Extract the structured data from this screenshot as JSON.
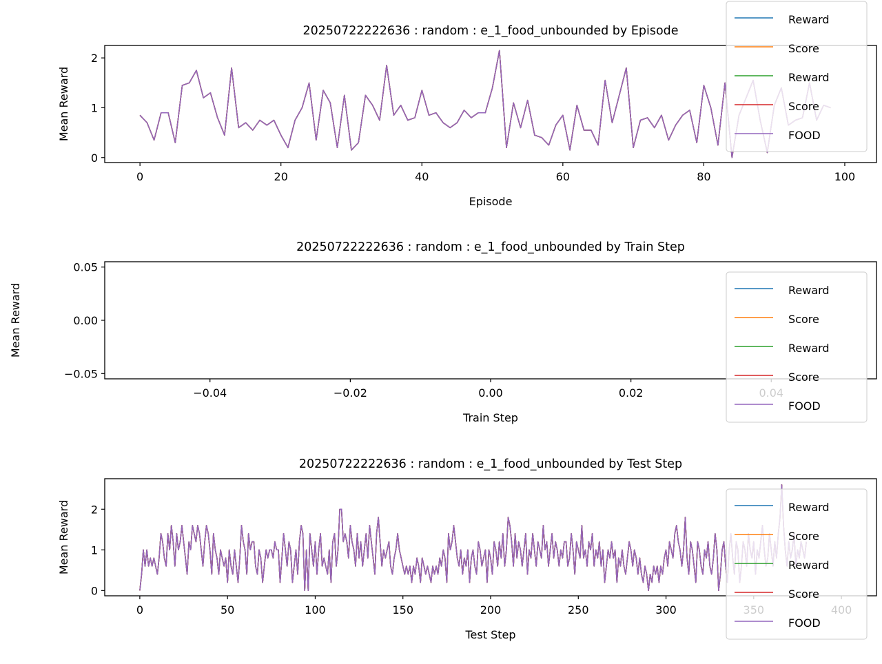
{
  "chart_data": [
    {
      "type": "line",
      "title": "20250722222636 : random : e_1_food_unbounded by Episode",
      "xlabel": "Episode",
      "ylabel": "Mean Reward",
      "xlim": [
        -5,
        104.5
      ],
      "ylim": [
        -0.1,
        2.25
      ],
      "xticks": [
        0,
        20,
        40,
        60,
        80,
        100
      ],
      "xtick_labels": [
        "0",
        "20",
        "40",
        "60",
        "80",
        "100"
      ],
      "yticks": [
        0,
        1,
        2
      ],
      "ytick_labels": [
        "0",
        "1",
        "2"
      ],
      "grid": false,
      "legend": "top-right",
      "x_start": 0,
      "values": [
        0.85,
        0.7,
        0.35,
        0.9,
        0.9,
        0.3,
        1.45,
        1.5,
        1.75,
        1.2,
        1.3,
        0.8,
        0.45,
        1.8,
        0.6,
        0.7,
        0.55,
        0.75,
        0.65,
        0.75,
        0.45,
        0.2,
        0.75,
        1.0,
        1.5,
        0.35,
        1.35,
        1.1,
        0.2,
        1.25,
        0.15,
        0.3,
        1.25,
        1.05,
        0.75,
        1.85,
        0.85,
        1.05,
        0.75,
        0.8,
        1.35,
        0.85,
        0.9,
        0.7,
        0.6,
        0.7,
        0.95,
        0.8,
        0.9,
        0.9,
        1.4,
        2.15,
        0.2,
        1.1,
        0.6,
        1.15,
        0.45,
        0.4,
        0.25,
        0.65,
        0.85,
        0.15,
        1.05,
        0.55,
        0.55,
        0.25,
        1.55,
        0.7,
        1.25,
        1.8,
        0.2,
        0.75,
        0.8,
        0.6,
        0.85,
        0.35,
        0.65,
        0.85,
        0.95,
        0.3,
        1.45,
        1.0,
        0.25,
        1.5,
        0.0,
        0.85,
        1.2,
        1.55,
        0.75,
        0.1,
        1.05,
        1.4,
        0.65,
        0.75,
        0.8,
        1.5,
        0.75,
        1.05,
        1.0
      ],
      "series": [
        {
          "name": "Reward",
          "color": "#1f77b4"
        },
        {
          "name": "Score",
          "color": "#ff7f0e"
        },
        {
          "name": "Reward",
          "color": "#2ca02c"
        },
        {
          "name": "Score",
          "color": "#d62728"
        },
        {
          "name": "FOOD",
          "color": "#9467bd"
        }
      ]
    },
    {
      "type": "line",
      "title": "20250722222636 : random : e_1_food_unbounded by Train Step",
      "xlabel": "Train Step",
      "ylabel": "Mean Reward",
      "xlim": [
        -0.055,
        0.055
      ],
      "ylim": [
        -0.055,
        0.055
      ],
      "xticks": [
        -0.04,
        -0.02,
        0,
        0.02,
        0.04
      ],
      "xtick_labels": [
        "−0.04",
        "−0.02",
        "0.00",
        "0.02",
        "0.04"
      ],
      "yticks": [
        0.05,
        0,
        -0.05
      ],
      "ytick_labels": [
        "0.05",
        "0.00",
        "−0.05"
      ],
      "grid": false,
      "legend": "right",
      "values": [],
      "series": [
        {
          "name": "Reward",
          "color": "#1f77b4"
        },
        {
          "name": "Score",
          "color": "#ff7f0e"
        },
        {
          "name": "Reward",
          "color": "#2ca02c"
        },
        {
          "name": "Score",
          "color": "#d62728"
        },
        {
          "name": "FOOD",
          "color": "#9467bd"
        }
      ]
    },
    {
      "type": "line",
      "title": "20250722222636 : random : e_1_food_unbounded by Test Step",
      "xlabel": "Test Step",
      "ylabel": "Mean Reward",
      "xlim": [
        -20,
        420
      ],
      "ylim": [
        -0.13,
        2.75
      ],
      "xticks": [
        0,
        50,
        100,
        150,
        200,
        250,
        300,
        350,
        400
      ],
      "xtick_labels": [
        "0",
        "50",
        "100",
        "150",
        "200",
        "250",
        "300",
        "350",
        "400"
      ],
      "yticks": [
        0,
        1,
        2
      ],
      "ytick_labels": [
        "0",
        "1",
        "2"
      ],
      "grid": false,
      "legend": "right",
      "x_start": 0,
      "values": [
        0.0,
        0.4,
        1.0,
        0.6,
        1.0,
        0.6,
        0.8,
        0.6,
        0.8,
        0.6,
        0.4,
        0.8,
        1.4,
        1.2,
        0.8,
        0.6,
        1.4,
        1.0,
        1.6,
        1.2,
        0.6,
        1.4,
        1.0,
        1.2,
        1.6,
        1.2,
        0.8,
        0.4,
        1.2,
        1.0,
        1.6,
        1.4,
        1.2,
        1.6,
        1.4,
        1.0,
        0.6,
        1.2,
        1.6,
        1.4,
        1.0,
        0.4,
        1.4,
        1.0,
        0.8,
        0.4,
        1.0,
        0.8,
        0.6,
        0.8,
        0.2,
        1.0,
        0.6,
        0.4,
        1.0,
        0.6,
        0.2,
        0.8,
        1.6,
        1.2,
        1.0,
        0.4,
        1.4,
        1.0,
        1.2,
        1.2,
        0.6,
        0.4,
        1.0,
        0.8,
        0.2,
        0.6,
        1.0,
        0.8,
        1.0,
        1.0,
        0.8,
        1.2,
        1.0,
        1.0,
        0.2,
        0.8,
        1.4,
        1.0,
        0.6,
        1.2,
        1.0,
        0.2,
        0.6,
        1.0,
        0.4,
        1.2,
        1.6,
        1.4,
        0.0,
        1.0,
        0.0,
        1.4,
        1.0,
        0.6,
        1.2,
        0.4,
        1.0,
        1.4,
        0.6,
        0.8,
        0.6,
        0.4,
        1.0,
        0.2,
        1.2,
        1.4,
        0.6,
        1.0,
        2.0,
        2.0,
        1.2,
        1.4,
        1.2,
        0.8,
        1.6,
        1.2,
        1.0,
        0.6,
        1.4,
        0.8,
        1.2,
        0.6,
        1.0,
        1.4,
        0.8,
        1.6,
        1.2,
        0.8,
        0.4,
        1.4,
        1.8,
        1.2,
        0.6,
        1.0,
        0.8,
        1.0,
        1.2,
        0.6,
        0.4,
        0.8,
        1.0,
        1.4,
        1.0,
        0.8,
        0.6,
        0.4,
        0.6,
        0.4,
        0.6,
        0.2,
        0.6,
        0.4,
        0.8,
        0.6,
        0.2,
        0.8,
        0.6,
        0.4,
        0.6,
        0.4,
        0.2,
        0.6,
        0.4,
        0.6,
        0.4,
        0.8,
        0.6,
        1.0,
        0.8,
        0.2,
        1.4,
        1.0,
        1.2,
        1.6,
        1.2,
        0.8,
        0.6,
        1.0,
        0.4,
        0.8,
        0.6,
        1.0,
        0.2,
        0.8,
        1.0,
        0.6,
        0.4,
        1.2,
        1.0,
        0.6,
        0.8,
        1.0,
        0.2,
        1.0,
        0.8,
        0.4,
        1.2,
        1.0,
        0.6,
        1.2,
        0.8,
        1.4,
        0.6,
        1.0,
        1.8,
        1.6,
        1.2,
        0.6,
        1.4,
        0.8,
        1.2,
        1.0,
        0.6,
        1.0,
        1.4,
        0.4,
        1.0,
        0.8,
        1.4,
        1.0,
        0.6,
        1.2,
        1.0,
        0.8,
        1.6,
        1.0,
        1.2,
        0.6,
        1.0,
        1.4,
        0.8,
        1.2,
        1.0,
        0.6,
        1.0,
        0.8,
        1.2,
        1.2,
        0.6,
        0.8,
        1.4,
        1.0,
        0.4,
        1.2,
        1.0,
        0.8,
        1.6,
        0.8,
        1.0,
        0.6,
        1.2,
        1.0,
        1.4,
        0.6,
        1.0,
        0.8,
        1.2,
        0.6,
        1.0,
        0.2,
        0.6,
        1.0,
        0.8,
        1.2,
        0.8,
        1.0,
        0.2,
        0.8,
        0.6,
        1.0,
        0.6,
        0.4,
        0.8,
        1.2,
        1.0,
        0.6,
        1.0,
        0.8,
        0.4,
        0.8,
        0.4,
        0.2,
        0.6,
        0.4,
        0.0,
        0.4,
        0.2,
        0.6,
        0.4,
        0.6,
        0.2,
        0.6,
        0.4,
        0.8,
        1.0,
        0.6,
        1.2,
        1.0,
        0.8,
        1.4,
        1.6,
        1.2,
        1.0,
        0.6,
        1.0,
        1.8,
        0.8,
        0.4,
        1.2,
        1.0,
        0.6,
        0.2,
        1.2,
        1.0,
        0.6,
        0.4,
        1.0,
        0.8,
        1.2,
        0.6,
        0.4,
        0.8,
        1.4,
        1.0,
        0.0,
        0.4,
        1.0,
        1.2,
        0.6,
        0.2,
        1.0,
        1.4,
        0.8,
        0.4,
        1.2,
        1.0,
        0.2,
        0.6,
        1.2,
        1.0,
        0.6,
        1.4,
        1.0,
        0.8,
        1.2,
        0.4,
        1.0,
        0.8,
        1.2,
        1.6,
        1.0,
        0.6,
        0.8,
        1.4,
        1.0,
        0.6,
        1.2,
        0.8,
        1.4,
        1.8,
        2.6,
        1.6,
        1.0,
        0.6,
        1.2,
        0.8,
        1.0,
        1.4,
        0.6,
        1.0,
        0.8,
        1.2,
        1.0,
        0.8,
        1.2
      ]
    }
  ]
}
